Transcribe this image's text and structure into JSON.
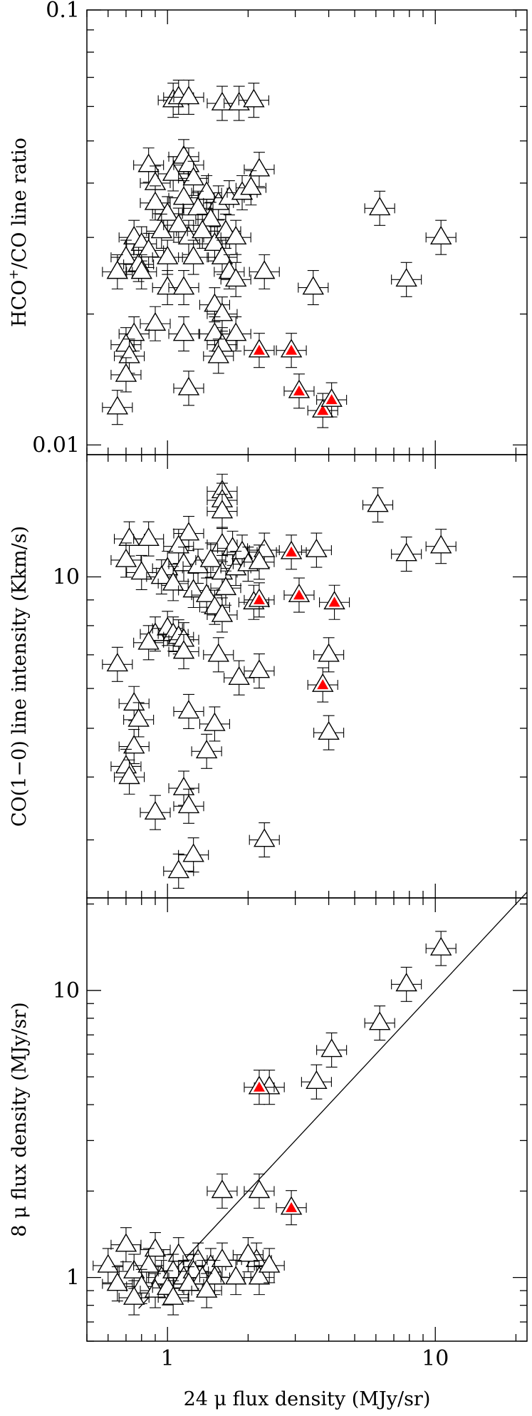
{
  "chart_data": [
    {
      "type": "scatter",
      "panel": "top",
      "ylabel_parts": [
        "HCO",
        "+",
        "/CO line ratio"
      ],
      "xscale": "log",
      "yscale": "log",
      "xlim": [
        0.5,
        22
      ],
      "ylim": [
        0.0095,
        0.1
      ],
      "ytick_labels": [
        {
          "value": 0.01,
          "label": "0.01"
        },
        {
          "value": 0.1,
          "label": "0.1"
        }
      ],
      "x_tick_labels_shown": false,
      "series": [
        {
          "marker": "open-triangle",
          "points": [
            [
              1.05,
              0.062
            ],
            [
              1.1,
              0.063
            ],
            [
              1.2,
              0.063
            ],
            [
              1.6,
              0.061
            ],
            [
              1.85,
              0.061
            ],
            [
              2.1,
              0.062
            ],
            [
              0.85,
              0.044
            ],
            [
              0.9,
              0.04
            ],
            [
              1.05,
              0.042
            ],
            [
              1.15,
              0.046
            ],
            [
              1.2,
              0.044
            ],
            [
              1.25,
              0.041
            ],
            [
              1.4,
              0.038
            ],
            [
              1.55,
              0.036
            ],
            [
              1.7,
              0.037
            ],
            [
              1.9,
              0.038
            ],
            [
              2.2,
              0.043
            ],
            [
              2.05,
              0.039
            ],
            [
              0.9,
              0.036
            ],
            [
              1.0,
              0.034
            ],
            [
              1.15,
              0.037
            ],
            [
              1.3,
              0.035
            ],
            [
              1.45,
              0.033
            ],
            [
              0.75,
              0.03
            ],
            [
              0.8,
              0.029
            ],
            [
              0.95,
              0.031
            ],
            [
              1.1,
              0.032
            ],
            [
              1.2,
              0.03
            ],
            [
              1.35,
              0.031
            ],
            [
              1.5,
              0.029
            ],
            [
              1.65,
              0.031
            ],
            [
              1.8,
              0.03
            ],
            [
              0.7,
              0.027
            ],
            [
              0.78,
              0.026
            ],
            [
              0.85,
              0.028
            ],
            [
              1.0,
              0.027
            ],
            [
              1.25,
              0.027
            ],
            [
              1.6,
              0.027
            ],
            [
              0.65,
              0.025
            ],
            [
              0.8,
              0.025
            ],
            [
              1.7,
              0.025
            ],
            [
              2.3,
              0.025
            ],
            [
              1.0,
              0.023
            ],
            [
              1.15,
              0.023
            ],
            [
              1.8,
              0.024
            ],
            [
              3.5,
              0.023
            ],
            [
              1.5,
              0.021
            ],
            [
              1.6,
              0.02
            ],
            [
              0.9,
              0.019
            ],
            [
              0.75,
              0.018
            ],
            [
              1.15,
              0.018
            ],
            [
              1.5,
              0.018
            ],
            [
              1.6,
              0.017
            ],
            [
              1.8,
              0.018
            ],
            [
              0.7,
              0.017
            ],
            [
              0.72,
              0.016
            ],
            [
              1.55,
              0.016
            ],
            [
              0.7,
              0.0145
            ],
            [
              1.2,
              0.0135
            ],
            [
              0.65,
              0.0122
            ],
            [
              6.2,
              0.035
            ],
            [
              10.5,
              0.03
            ],
            [
              7.8,
              0.024
            ]
          ]
        },
        {
          "marker": "filled-triangle-red",
          "points": [
            [
              2.2,
              0.0165
            ],
            [
              2.9,
              0.0165
            ],
            [
              3.1,
              0.0133
            ],
            [
              3.8,
              0.012
            ],
            [
              4.1,
              0.0127
            ]
          ]
        }
      ]
    },
    {
      "type": "scatter",
      "panel": "middle",
      "ylabel": "CO(1−0) line intensity (Kkm/s)",
      "xscale": "log",
      "yscale": "log",
      "xlim": [
        0.5,
        22
      ],
      "ylim": [
        2.3,
        17.5
      ],
      "ytick_labels": [
        {
          "value": 10,
          "label": "10"
        }
      ],
      "x_tick_labels_shown": false,
      "series": [
        {
          "marker": "open-triangle",
          "points": [
            [
              1.6,
              14.8
            ],
            [
              1.6,
              14.2
            ],
            [
              1.6,
              13.5
            ],
            [
              6.1,
              13.9
            ],
            [
              0.72,
              11.9
            ],
            [
              0.85,
              11.9
            ],
            [
              1.2,
              12.2
            ],
            [
              1.1,
              11.5
            ],
            [
              1.6,
              11.6
            ],
            [
              1.75,
              11.4
            ],
            [
              1.9,
              11.2
            ],
            [
              2.3,
              11.3
            ],
            [
              3.6,
              11.3
            ],
            [
              10.5,
              11.5
            ],
            [
              7.8,
              11.1
            ],
            [
              0.7,
              10.8
            ],
            [
              0.8,
              10.2
            ],
            [
              1.0,
              10.4
            ],
            [
              1.15,
              10.6
            ],
            [
              1.3,
              10.5
            ],
            [
              1.45,
              10.8
            ],
            [
              1.6,
              10.2
            ],
            [
              1.8,
              10.4
            ],
            [
              2.0,
              10.6
            ],
            [
              2.2,
              10.7
            ],
            [
              0.95,
              10.0
            ],
            [
              1.05,
              9.7
            ],
            [
              1.25,
              9.4
            ],
            [
              1.4,
              9.2
            ],
            [
              1.65,
              9.5
            ],
            [
              1.5,
              8.7
            ],
            [
              1.6,
              8.4
            ],
            [
              2.1,
              8.9
            ],
            [
              0.9,
              7.7
            ],
            [
              1.0,
              7.9
            ],
            [
              1.05,
              7.7
            ],
            [
              1.1,
              7.6
            ],
            [
              1.15,
              7.5
            ],
            [
              0.85,
              7.4
            ],
            [
              1.15,
              7.1
            ],
            [
              1.55,
              7.0
            ],
            [
              4.0,
              7.0
            ],
            [
              0.65,
              6.7
            ],
            [
              1.85,
              6.3
            ],
            [
              2.2,
              6.5
            ],
            [
              0.75,
              5.6
            ],
            [
              1.2,
              5.4
            ],
            [
              0.78,
              5.2
            ],
            [
              1.5,
              5.1
            ],
            [
              4.0,
              4.9
            ],
            [
              0.75,
              4.6
            ],
            [
              1.4,
              4.5
            ],
            [
              0.7,
              4.2
            ],
            [
              0.72,
              4.0
            ],
            [
              1.15,
              3.8
            ],
            [
              1.2,
              3.5
            ],
            [
              0.9,
              3.4
            ],
            [
              2.3,
              3.0
            ],
            [
              1.25,
              2.8
            ],
            [
              1.1,
              2.6
            ]
          ]
        },
        {
          "marker": "filled-triangle-red",
          "points": [
            [
              2.9,
              11.2
            ],
            [
              2.2,
              9.0
            ],
            [
              3.1,
              9.2
            ],
            [
              4.2,
              8.9
            ],
            [
              3.8,
              6.1
            ]
          ]
        }
      ]
    },
    {
      "type": "scatter",
      "panel": "bottom",
      "ylabel": "8 μ flux density (MJy/sr)",
      "xlabel": "24 μ flux density (MJy/sr)",
      "xscale": "log",
      "yscale": "log",
      "xlim": [
        0.5,
        22
      ],
      "ylim": [
        0.6,
        21
      ],
      "ytick_labels": [
        {
          "value": 1,
          "label": "1"
        },
        {
          "value": 10,
          "label": "10"
        }
      ],
      "xtick_labels": [
        {
          "value": 1,
          "label": "1"
        },
        {
          "value": 10,
          "label": "10"
        }
      ],
      "reference_line": "y = x",
      "series": [
        {
          "marker": "open-triangle",
          "points": [
            [
              10.5,
              14.0
            ],
            [
              7.8,
              10.5
            ],
            [
              6.2,
              7.7
            ],
            [
              4.1,
              6.2
            ],
            [
              3.6,
              4.8
            ],
            [
              2.4,
              4.6
            ],
            [
              1.6,
              2.0
            ],
            [
              2.2,
              2.0
            ],
            [
              2.15,
              1.15
            ],
            [
              0.7,
              1.3
            ],
            [
              0.9,
              1.25
            ],
            [
              1.1,
              1.2
            ],
            [
              1.3,
              1.15
            ],
            [
              1.45,
              1.1
            ],
            [
              1.6,
              1.15
            ],
            [
              2.0,
              1.2
            ],
            [
              0.6,
              1.1
            ],
            [
              0.75,
              1.05
            ],
            [
              0.85,
              1.1
            ],
            [
              0.95,
              1.0
            ],
            [
              1.05,
              1.05
            ],
            [
              1.15,
              1.0
            ],
            [
              1.25,
              1.05
            ],
            [
              1.35,
              1.0
            ],
            [
              1.5,
              1.0
            ],
            [
              1.8,
              1.0
            ],
            [
              2.2,
              1.0
            ],
            [
              2.4,
              1.1
            ],
            [
              0.65,
              0.95
            ],
            [
              0.8,
              0.93
            ],
            [
              0.9,
              0.9
            ],
            [
              1.0,
              0.92
            ],
            [
              1.2,
              0.95
            ],
            [
              1.4,
              0.9
            ],
            [
              0.75,
              0.85
            ],
            [
              1.05,
              0.85
            ]
          ]
        },
        {
          "marker": "filled-triangle-red",
          "points": [
            [
              2.2,
              4.6
            ],
            [
              2.9,
              1.75
            ]
          ]
        }
      ]
    }
  ]
}
